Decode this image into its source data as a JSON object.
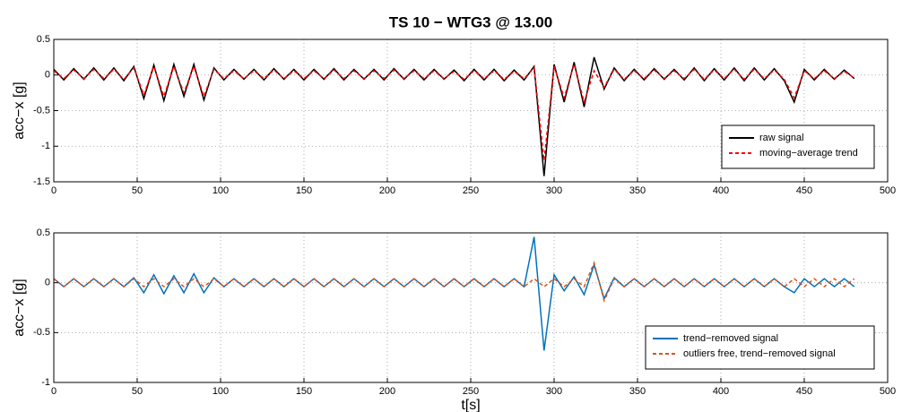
{
  "chart_data": [
    {
      "type": "line",
      "title": "TS 10 − WTG3 @ 13.00",
      "y_label": "acc−x [g]",
      "x": [
        0,
        6,
        12,
        18,
        24,
        30,
        36,
        42,
        48,
        54,
        60,
        66,
        72,
        78,
        84,
        90,
        96,
        102,
        108,
        114,
        120,
        126,
        132,
        138,
        144,
        150,
        156,
        162,
        168,
        174,
        180,
        186,
        192,
        198,
        204,
        210,
        216,
        222,
        228,
        234,
        240,
        246,
        252,
        258,
        264,
        270,
        276,
        282,
        288,
        294,
        300,
        306,
        312,
        318,
        324,
        330,
        336,
        342,
        348,
        354,
        360,
        366,
        372,
        378,
        384,
        390,
        396,
        402,
        408,
        414,
        420,
        426,
        432,
        438,
        444,
        450,
        456,
        462,
        468,
        474,
        480
      ],
      "series": [
        {
          "name": "raw signal",
          "color": "#000000",
          "linestyle": "solid",
          "values": [
            0.08,
            -0.07,
            0.09,
            -0.06,
            0.1,
            -0.07,
            0.1,
            -0.08,
            0.12,
            -0.33,
            0.14,
            -0.36,
            0.15,
            -0.3,
            0.15,
            -0.35,
            0.1,
            -0.07,
            0.08,
            -0.06,
            0.08,
            -0.07,
            0.09,
            -0.06,
            0.08,
            -0.07,
            0.08,
            -0.06,
            0.09,
            -0.07,
            0.08,
            -0.06,
            0.08,
            -0.07,
            0.09,
            -0.06,
            0.08,
            -0.07,
            0.08,
            -0.06,
            0.07,
            -0.08,
            0.08,
            -0.07,
            0.08,
            -0.08,
            0.07,
            -0.07,
            0.12,
            -1.42,
            0.15,
            -0.38,
            0.18,
            -0.45,
            0.25,
            -0.2,
            0.1,
            -0.08,
            0.08,
            -0.07,
            0.09,
            -0.06,
            0.08,
            -0.07,
            0.1,
            -0.08,
            0.09,
            -0.07,
            0.1,
            -0.08,
            0.1,
            -0.07,
            0.09,
            -0.08,
            -0.38,
            0.08,
            -0.07,
            0.08,
            -0.06,
            0.07,
            -0.05
          ]
        },
        {
          "name": "moving−average trend",
          "color": "#ff0000",
          "linestyle": "dashed",
          "values": [
            0.06,
            -0.05,
            0.07,
            -0.05,
            0.08,
            -0.05,
            0.08,
            -0.06,
            0.1,
            -0.28,
            0.12,
            -0.3,
            0.12,
            -0.25,
            0.12,
            -0.3,
            0.08,
            -0.05,
            0.06,
            -0.05,
            0.06,
            -0.05,
            0.07,
            -0.05,
            0.06,
            -0.05,
            0.06,
            -0.05,
            0.07,
            -0.05,
            0.06,
            -0.05,
            0.06,
            -0.05,
            0.07,
            -0.05,
            0.06,
            -0.05,
            0.06,
            -0.05,
            0.05,
            -0.06,
            0.06,
            -0.05,
            0.06,
            -0.06,
            0.05,
            -0.05,
            0.1,
            -1.2,
            0.12,
            -0.32,
            0.15,
            -0.38,
            0.06,
            -0.17,
            0.08,
            -0.06,
            0.06,
            -0.05,
            0.07,
            -0.05,
            0.06,
            -0.05,
            0.08,
            -0.06,
            0.07,
            -0.05,
            0.08,
            -0.06,
            0.08,
            -0.05,
            0.07,
            -0.06,
            -0.32,
            0.06,
            -0.05,
            0.06,
            -0.05,
            0.05,
            -0.04
          ]
        }
      ],
      "xlim": [
        0,
        500
      ],
      "xticks": [
        0,
        50,
        100,
        150,
        200,
        250,
        300,
        350,
        400,
        450,
        500
      ],
      "ylim": [
        -1.5,
        0.5
      ],
      "yticks": [
        -1.5,
        -1,
        -0.5,
        0,
        0.5
      ],
      "grid": true,
      "legend": "southeast"
    },
    {
      "type": "line",
      "x_label": "t[s]",
      "y_label": "acc−x [g]",
      "x": [
        0,
        6,
        12,
        18,
        24,
        30,
        36,
        42,
        48,
        54,
        60,
        66,
        72,
        78,
        84,
        90,
        96,
        102,
        108,
        114,
        120,
        126,
        132,
        138,
        144,
        150,
        156,
        162,
        168,
        174,
        180,
        186,
        192,
        198,
        204,
        210,
        216,
        222,
        228,
        234,
        240,
        246,
        252,
        258,
        264,
        270,
        276,
        282,
        288,
        294,
        300,
        306,
        312,
        318,
        324,
        330,
        336,
        342,
        348,
        354,
        360,
        366,
        372,
        378,
        384,
        390,
        396,
        402,
        408,
        414,
        420,
        426,
        432,
        438,
        444,
        450,
        456,
        462,
        468,
        474,
        480
      ],
      "series": [
        {
          "name": "trend−removed signal",
          "color": "#0072bd",
          "linestyle": "solid",
          "values": [
            0.04,
            -0.04,
            0.04,
            -0.04,
            0.04,
            -0.04,
            0.04,
            -0.04,
            0.05,
            -0.1,
            0.08,
            -0.11,
            0.07,
            -0.1,
            0.09,
            -0.1,
            0.05,
            -0.04,
            0.04,
            -0.04,
            0.04,
            -0.04,
            0.04,
            -0.04,
            0.04,
            -0.04,
            0.04,
            -0.04,
            0.04,
            -0.04,
            0.04,
            -0.04,
            0.04,
            -0.04,
            0.04,
            -0.04,
            0.04,
            -0.04,
            0.04,
            -0.04,
            0.04,
            -0.04,
            0.04,
            -0.04,
            0.04,
            -0.04,
            0.04,
            -0.04,
            0.46,
            -0.68,
            0.08,
            -0.08,
            0.06,
            -0.12,
            0.18,
            -0.16,
            0.05,
            -0.04,
            0.04,
            -0.04,
            0.04,
            -0.04,
            0.04,
            -0.04,
            0.04,
            -0.04,
            0.04,
            -0.04,
            0.04,
            -0.04,
            0.04,
            -0.04,
            0.04,
            -0.04,
            -0.1,
            0.04,
            -0.04,
            0.04,
            -0.04,
            0.04,
            -0.04
          ]
        },
        {
          "name": "outliers free, trend−removed signal",
          "color": "#d95319",
          "linestyle": "dashed",
          "values": [
            0.04,
            -0.04,
            0.04,
            -0.04,
            0.04,
            -0.04,
            0.04,
            -0.04,
            0.04,
            -0.04,
            0.04,
            -0.04,
            0.04,
            -0.04,
            0.04,
            -0.04,
            0.04,
            -0.04,
            0.04,
            -0.04,
            0.04,
            -0.04,
            0.04,
            -0.04,
            0.04,
            -0.04,
            0.04,
            -0.04,
            0.04,
            -0.04,
            0.04,
            -0.04,
            0.04,
            -0.04,
            0.04,
            -0.04,
            0.04,
            -0.04,
            0.04,
            -0.04,
            0.04,
            -0.04,
            0.04,
            -0.04,
            0.04,
            -0.04,
            0.04,
            -0.04,
            0.04,
            -0.04,
            0.04,
            -0.04,
            0.04,
            -0.04,
            0.2,
            -0.18,
            0.04,
            -0.04,
            0.04,
            -0.04,
            0.04,
            -0.04,
            0.04,
            -0.04,
            0.04,
            -0.04,
            0.04,
            -0.04,
            0.04,
            -0.04,
            0.04,
            -0.04,
            0.04,
            -0.04,
            0.04,
            -0.04,
            0.04,
            -0.04,
            0.04,
            -0.04,
            0.04
          ]
        }
      ],
      "xlim": [
        0,
        500
      ],
      "xticks": [
        0,
        50,
        100,
        150,
        200,
        250,
        300,
        350,
        400,
        450,
        500
      ],
      "ylim": [
        -1,
        0.5
      ],
      "yticks": [
        -1,
        -0.5,
        0,
        0.5
      ],
      "grid": true,
      "legend": "southeast"
    }
  ]
}
